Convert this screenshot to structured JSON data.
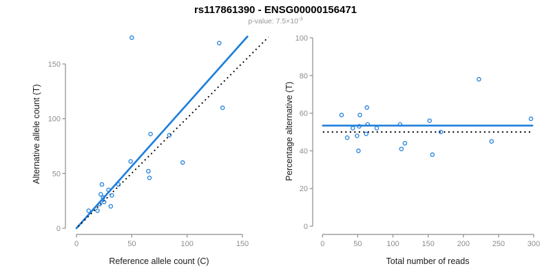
{
  "header": {
    "title": "rs117861390 - ENSG00000156471",
    "subtitle_base": "p-value: 7.5×10",
    "subtitle_exponent": "-3"
  },
  "colors": {
    "accent_blue": "#1E7FDB",
    "axis_gray": "#8C8C8C",
    "tick_label_gray": "#8C8C8C",
    "dotted_black": "#000000",
    "title_black": "#000000",
    "subtitle_gray": "#969696",
    "axis_title_dark": "#1A1A1A"
  },
  "chart_data": [
    {
      "type": "scatter",
      "title": "",
      "xlabel": "Reference allele count (C)",
      "ylabel": "Alternative allele count (T)",
      "xlim": [
        0,
        155
      ],
      "ylim": [
        0,
        180
      ],
      "xticks": [
        0,
        50,
        100,
        150
      ],
      "yticks": [
        0,
        50,
        100,
        150
      ],
      "grid": false,
      "legend": "none",
      "marker": "open-circle",
      "points": [
        [
          50,
          174
        ],
        [
          129,
          169
        ],
        [
          132,
          110
        ],
        [
          84,
          85
        ],
        [
          67,
          86
        ],
        [
          96,
          60
        ],
        [
          49,
          61
        ],
        [
          65,
          52
        ],
        [
          66,
          46
        ],
        [
          38,
          40
        ],
        [
          23,
          40
        ],
        [
          29,
          35
        ],
        [
          22,
          31
        ],
        [
          32,
          30
        ],
        [
          24,
          28
        ],
        [
          25,
          24
        ],
        [
          21,
          22
        ],
        [
          31,
          20
        ],
        [
          19,
          16
        ],
        [
          11,
          16
        ]
      ],
      "lines": [
        {
          "name": "regression-line",
          "style": "solid",
          "x1": 0,
          "y1": 0,
          "x2": 154.5,
          "y2": 175
        },
        {
          "name": "identity-line",
          "style": "dotted",
          "x1": 1.5,
          "y1": 1.5,
          "x2": 173.5,
          "y2": 174.5
        }
      ]
    },
    {
      "type": "scatter",
      "title": "",
      "xlabel": "Total number of reads",
      "ylabel": "Percentage alternative (T)",
      "xlim": [
        0,
        300
      ],
      "ylim": [
        0,
        100
      ],
      "xticks": [
        0,
        50,
        100,
        150,
        200,
        250,
        300
      ],
      "yticks": [
        0,
        20,
        40,
        60,
        80,
        100
      ],
      "grid": false,
      "legend": "none",
      "marker": "open-circle",
      "points": [
        [
          27,
          59
        ],
        [
          35,
          47
        ],
        [
          43,
          52
        ],
        [
          49,
          48
        ],
        [
          51,
          40
        ],
        [
          52,
          53
        ],
        [
          53,
          59
        ],
        [
          62,
          49
        ],
        [
          63,
          63
        ],
        [
          64,
          54
        ],
        [
          77,
          52
        ],
        [
          110,
          54
        ],
        [
          112,
          41
        ],
        [
          117,
          44
        ],
        [
          152,
          56
        ],
        [
          156,
          38
        ],
        [
          168,
          50
        ],
        [
          222,
          78
        ],
        [
          240,
          45
        ],
        [
          296,
          57
        ]
      ],
      "lines": [
        {
          "name": "mean-line",
          "style": "solid",
          "x1": 0.5,
          "y1": 53.4,
          "x2": 298,
          "y2": 53.4
        },
        {
          "name": "reference-line",
          "style": "dotted",
          "x1": 0.5,
          "y1": 50,
          "x2": 297,
          "y2": 50
        }
      ]
    }
  ]
}
